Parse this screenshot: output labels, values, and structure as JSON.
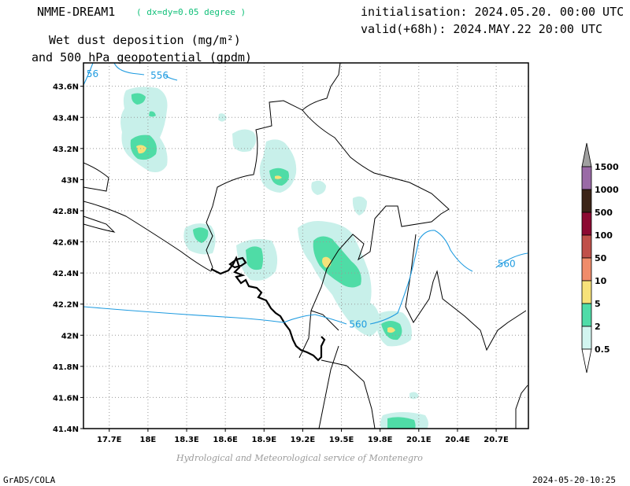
{
  "header": {
    "model": "NMME-DREAM1",
    "resolution": "( dx=dy=0.05 degree )",
    "initialisation": "initialisation: 2024.05.20. 00:00 UTC",
    "valid": "valid(+68h): 2024.MAY.22 20:00 UTC",
    "title_line1": "Wet dust deposition (mg/m²)",
    "title_line2": "and 500 hPa geopotential (gpdm)"
  },
  "footer": {
    "credit": "Hydrological and Meteorological service of Montenegro",
    "software": "GrADS/COLA",
    "timestamp": "2024-05-20-10:25"
  },
  "map": {
    "lon_range": [
      17.5,
      20.95
    ],
    "lat_range": [
      41.4,
      43.75
    ],
    "lon_ticks": [
      {
        "v": 17.7,
        "label": "17.7E"
      },
      {
        "v": 18.0,
        "label": "18E"
      },
      {
        "v": 18.3,
        "label": "18.3E"
      },
      {
        "v": 18.6,
        "label": "18.6E"
      },
      {
        "v": 18.9,
        "label": "18.9E"
      },
      {
        "v": 19.2,
        "label": "19.2E"
      },
      {
        "v": 19.5,
        "label": "19.5E"
      },
      {
        "v": 19.8,
        "label": "19.8E"
      },
      {
        "v": 20.1,
        "label": "20.1E"
      },
      {
        "v": 20.4,
        "label": "20.4E"
      },
      {
        "v": 20.7,
        "label": "20.7E"
      }
    ],
    "lat_ticks": [
      {
        "v": 41.4,
        "label": "41.4N"
      },
      {
        "v": 41.6,
        "label": "41.6N"
      },
      {
        "v": 41.8,
        "label": "41.8N"
      },
      {
        "v": 42.0,
        "label": "42N"
      },
      {
        "v": 42.2,
        "label": "42.2N"
      },
      {
        "v": 42.4,
        "label": "42.4N"
      },
      {
        "v": 42.6,
        "label": "42.6N"
      },
      {
        "v": 42.8,
        "label": "42.8N"
      },
      {
        "v": 43.0,
        "label": "43N"
      },
      {
        "v": 43.2,
        "label": "43.2N"
      },
      {
        "v": 43.4,
        "label": "43.4N"
      },
      {
        "v": 43.6,
        "label": "43.6N"
      }
    ],
    "contour_labels": [
      {
        "text": "556",
        "lon": 18.09,
        "lat": 43.67
      },
      {
        "text": "560",
        "lon": 20.78,
        "lat": 42.46
      },
      {
        "text": "560",
        "lon": 19.63,
        "lat": 42.07
      },
      {
        "text": "56",
        "lon": 17.57,
        "lat": 43.68
      }
    ],
    "colors": {
      "contour": "#1e9be0",
      "level_0_5": "#c8f0ea",
      "level_2": "#4fdca6",
      "level_5": "#f5e27a"
    }
  },
  "legend": {
    "levels": [
      "0.5",
      "2",
      "5",
      "10",
      "50",
      "100",
      "500",
      "1000",
      "1500"
    ],
    "colors": [
      "#d2f5f0",
      "#50dca8",
      "#f7e27a",
      "#f08c6a",
      "#c0504a",
      "#8c0a32",
      "#3c2418",
      "#9a6aa6",
      "#a0a0a0"
    ]
  }
}
